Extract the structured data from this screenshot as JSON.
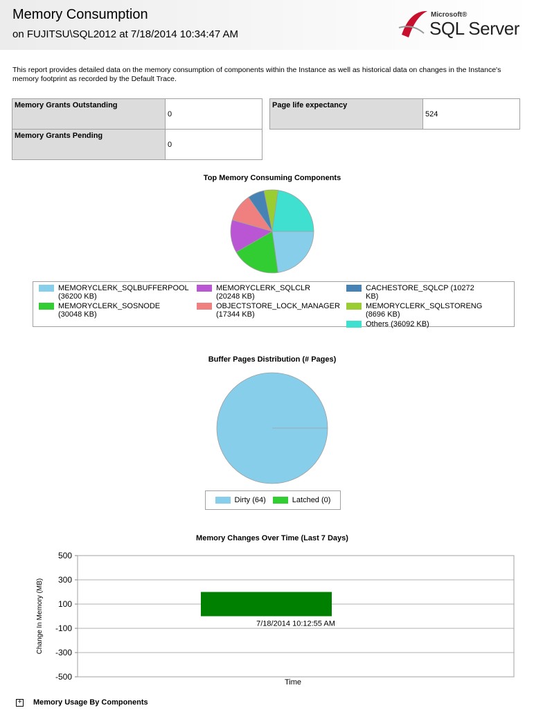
{
  "header": {
    "title": "Memory Consumption",
    "subtitle": "on FUJITSU\\SQL2012 at 7/18/2014 10:34:47 AM",
    "logo_brand": "Microsoft®",
    "logo_product": "SQL Server"
  },
  "description": "This report provides detailed data on the memory consumption of components within the Instance as well as historical data on changes in the Instance's memory footprint as recorded by the Default Trace.",
  "tables": [
    {
      "rows": [
        [
          "Memory Grants Outstanding",
          "0"
        ],
        [
          "Memory Grants Pending",
          "0"
        ]
      ]
    },
    {
      "rows": [
        [
          "Page life expectancy",
          "524"
        ]
      ]
    }
  ],
  "chart_data": [
    {
      "type": "pie",
      "title": "Top Memory Consuming Components",
      "categories": [
        "MEMORYCLERK_SQLBUFFERPOOL (36200 KB)",
        "MEMORYCLERK_SOSNODE (30048 KB)",
        "MEMORYCLERK_SQLCLR (20248 KB)",
        "OBJECTSTORE_LOCK_MANAGER (17344 KB)",
        "CACHESTORE_SQLCP (10272 KB)",
        "MEMORYCLERK_SQLSTORENG (8696 KB)",
        "Others (36092 KB)"
      ],
      "values": [
        36200,
        30048,
        20248,
        17344,
        10272,
        8696,
        36092
      ],
      "colors": [
        "#87ceeb",
        "#32cd32",
        "#ba55d3",
        "#f08080",
        "#4682b4",
        "#9acd32",
        "#40e0d0"
      ]
    },
    {
      "type": "pie",
      "title": "Buffer Pages Distribution (# Pages)",
      "categories": [
        "Dirty (64)",
        "Latched (0)"
      ],
      "values": [
        64,
        0
      ],
      "colors": [
        "#87ceeb",
        "#32cd32"
      ]
    },
    {
      "type": "bar",
      "title": "Memory Changes Over Time (Last 7 Days)",
      "x_label": "Time",
      "y_label": "Change In Memory (MB)",
      "categories": [
        "7/18/2014 10:12:55 AM"
      ],
      "values": [
        200
      ],
      "color": "#008000",
      "ylim": [
        -500,
        500
      ],
      "yticks": [
        -500,
        -300,
        -100,
        100,
        300,
        500
      ],
      "grid": true
    }
  ],
  "footer": {
    "section": "Memory Usage By Components"
  }
}
